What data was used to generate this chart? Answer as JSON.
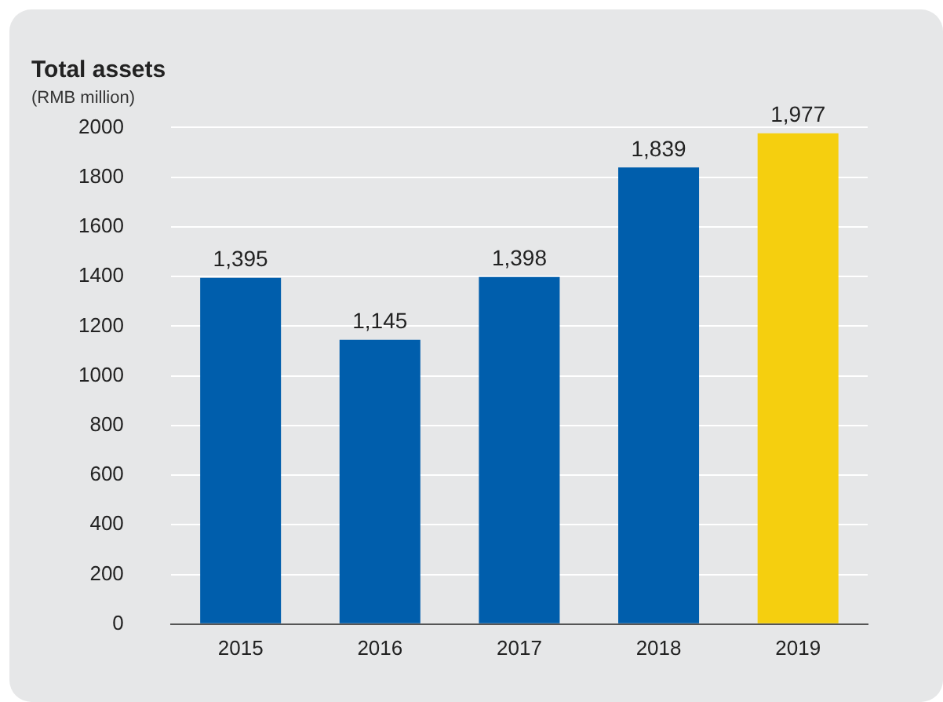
{
  "chart_data": {
    "type": "bar",
    "title": "Total assets",
    "subtitle": "(RMB million)",
    "categories": [
      "2015",
      "2016",
      "2017",
      "2018",
      "2019"
    ],
    "values": [
      1395,
      1145,
      1398,
      1839,
      1977
    ],
    "colors": [
      "#005eac",
      "#005eac",
      "#005eac",
      "#005eac",
      "#f5cf0f"
    ],
    "value_labels": [
      "1,395",
      "1,145",
      "1,398",
      "1,839",
      "1,977"
    ],
    "ylim": [
      0,
      2000
    ],
    "yticks": [
      0,
      200,
      400,
      600,
      800,
      1000,
      1200,
      1400,
      1600,
      1800,
      2000
    ],
    "grid": "y",
    "legend": false
  }
}
